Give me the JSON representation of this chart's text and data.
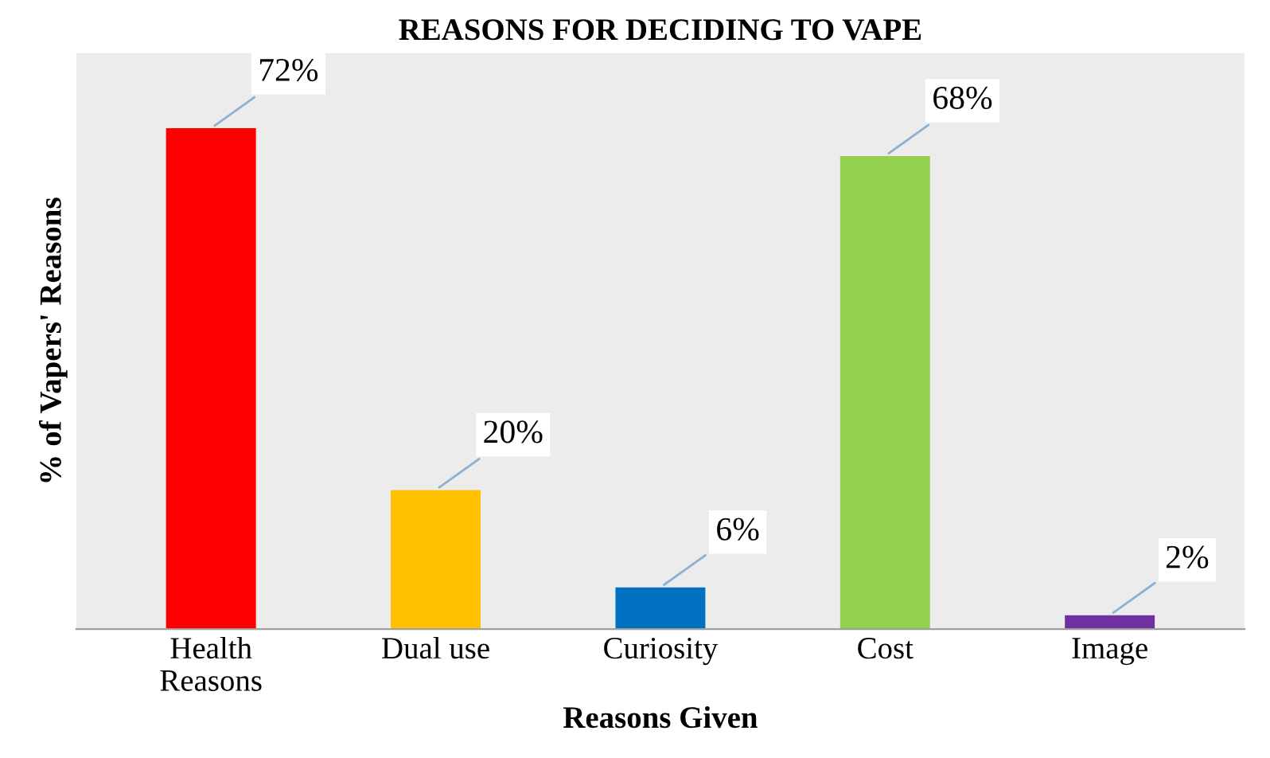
{
  "chart_data": {
    "type": "bar",
    "title": "REASONS FOR DECIDING TO VAPE",
    "xlabel": "Reasons Given",
    "ylabel": "% of Vapers' Reasons",
    "categories": [
      "Health\nReasons",
      "Dual use",
      "Curiosity",
      "Cost",
      "Image"
    ],
    "values": [
      72,
      20,
      6,
      68,
      2
    ],
    "value_labels": [
      "72%",
      "20%",
      "6%",
      "68%",
      "2%"
    ],
    "colors": [
      "#ff0000",
      "#ffc000",
      "#0070c0",
      "#92d050",
      "#7030a0"
    ]
  }
}
